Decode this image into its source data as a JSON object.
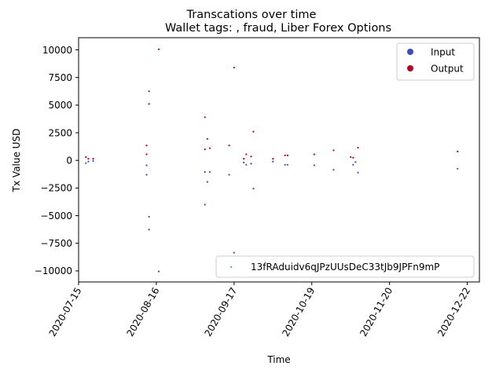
{
  "chart_data": {
    "type": "scatter",
    "title": "Transcations over time",
    "subtitle": "Wallet tags: , fraud, Liber Forex Options",
    "xlabel": "Time",
    "ylabel": "Tx Value USD",
    "xlim": [
      "2020-07-15",
      "2020-12-27"
    ],
    "ylim": [
      -11000,
      11100
    ],
    "x_ticks": [
      "2020-07-15",
      "2020-08-16",
      "2020-09-17",
      "2020-10-19",
      "2020-11-20",
      "2020-12-22"
    ],
    "y_ticks": [
      -10000,
      -7500,
      -5000,
      -2500,
      0,
      2500,
      5000,
      7500,
      10000
    ],
    "y_tick_labels": [
      "−10000",
      "−7500",
      "−5000",
      "−2500",
      "0",
      "2500",
      "5000",
      "7500",
      "10000"
    ],
    "grid": false,
    "legend": {
      "placement": "top-right",
      "entries": [
        {
          "label": "Input",
          "color": "#3b4cc0"
        },
        {
          "label": "Output",
          "color": "#b40426"
        }
      ]
    },
    "legend2": {
      "placement": "lower-right",
      "entries": [
        {
          "label": "13fRAduidv6qJPzUUsDeC33tJb9JPFn9mP",
          "color": "#1f9e89"
        }
      ]
    },
    "series": [
      {
        "name": "Input",
        "color": "#3b4cc0",
        "points": [
          [
            "2020-07-18",
            -250
          ],
          [
            "2020-07-19",
            -100
          ],
          [
            "2020-07-21",
            -50
          ],
          [
            "2020-08-12",
            -1300
          ],
          [
            "2020-08-12",
            -450
          ],
          [
            "2020-08-13",
            -5100
          ],
          [
            "2020-08-13",
            -6250
          ],
          [
            "2020-08-17",
            -10050
          ],
          [
            "2020-09-05",
            -1050
          ],
          [
            "2020-09-05",
            -4000
          ],
          [
            "2020-09-06",
            -1950
          ],
          [
            "2020-09-07",
            -1050
          ],
          [
            "2020-09-15",
            -1300
          ],
          [
            "2020-09-17",
            -8350
          ],
          [
            "2020-09-21",
            -200
          ],
          [
            "2020-09-22",
            -400
          ],
          [
            "2020-09-24",
            -300
          ],
          [
            "2020-09-25",
            -2550
          ],
          [
            "2020-10-03",
            -100
          ],
          [
            "2020-10-08",
            -400
          ],
          [
            "2020-10-09",
            -400
          ],
          [
            "2020-10-20",
            -450
          ],
          [
            "2020-10-28",
            -850
          ],
          [
            "2020-11-05",
            -400
          ],
          [
            "2020-11-06",
            -150
          ],
          [
            "2020-11-07",
            -1100
          ],
          [
            "2020-12-18",
            -750
          ]
        ]
      },
      {
        "name": "Output",
        "color": "#b40426",
        "points": [
          [
            "2020-07-18",
            300
          ],
          [
            "2020-07-19",
            150
          ],
          [
            "2020-07-21",
            150
          ],
          [
            "2020-08-12",
            1350
          ],
          [
            "2020-08-12",
            550
          ],
          [
            "2020-08-13",
            5100
          ],
          [
            "2020-08-13",
            6250
          ],
          [
            "2020-08-17",
            10050
          ],
          [
            "2020-09-05",
            1000
          ],
          [
            "2020-09-05",
            3900
          ],
          [
            "2020-09-06",
            1950
          ],
          [
            "2020-09-07",
            1100
          ],
          [
            "2020-09-15",
            1350
          ],
          [
            "2020-09-17",
            8400
          ],
          [
            "2020-09-21",
            150
          ],
          [
            "2020-09-22",
            550
          ],
          [
            "2020-09-24",
            350
          ],
          [
            "2020-09-25",
            2600
          ],
          [
            "2020-10-03",
            150
          ],
          [
            "2020-10-08",
            450
          ],
          [
            "2020-10-09",
            450
          ],
          [
            "2020-10-20",
            550
          ],
          [
            "2020-10-28",
            900
          ],
          [
            "2020-11-04",
            300
          ],
          [
            "2020-11-05",
            250
          ],
          [
            "2020-11-07",
            1150
          ],
          [
            "2020-12-18",
            800
          ]
        ]
      }
    ]
  }
}
